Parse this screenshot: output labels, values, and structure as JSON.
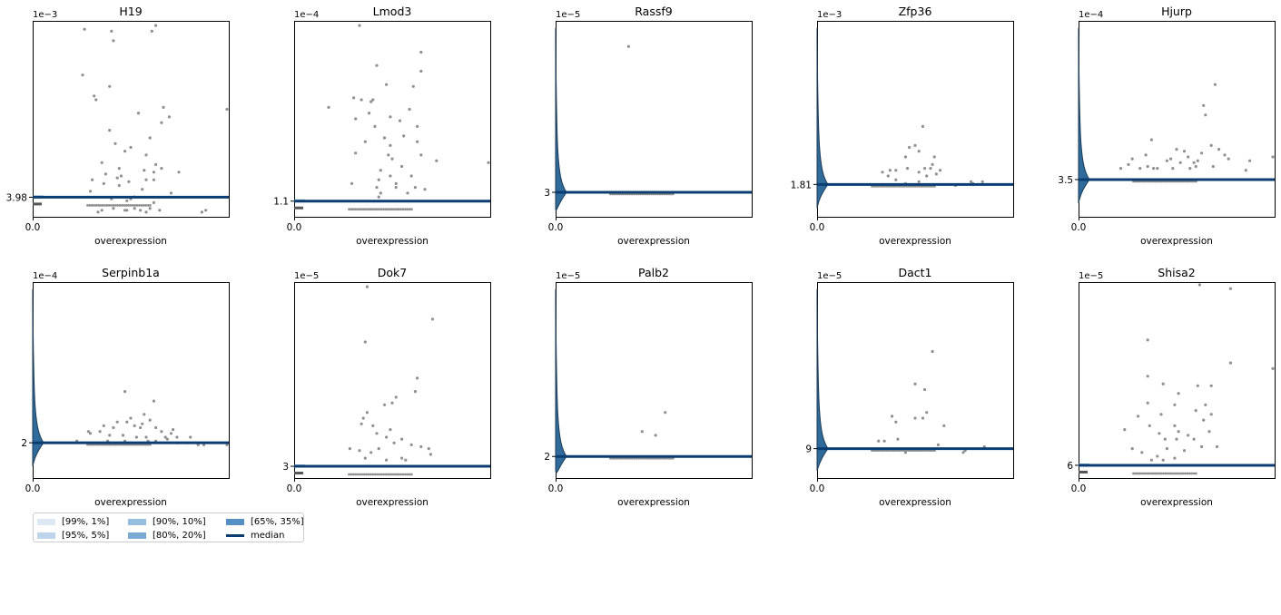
{
  "chart_data": [
    {
      "type": "violin+strip",
      "title": "H19",
      "exponent_label": "1e−3",
      "xtick": "0.0",
      "xlabel": "overexpression",
      "ytick_label": "3.98",
      "median": 3.98,
      "median_scale": "1e-3",
      "distribution": "narrow",
      "points": [
        [
          0.48,
          0.07
        ],
        [
          0.29,
          0.12
        ],
        [
          0.33,
          0.01
        ],
        [
          0.47,
          0.02
        ],
        [
          0.56,
          0.13
        ],
        [
          0.62,
          0.06
        ],
        [
          0.4,
          0.08
        ],
        [
          0.52,
          0.09
        ],
        [
          0.71,
          0.11
        ],
        [
          0.3,
          0.18
        ],
        [
          0.37,
          0.21
        ],
        [
          0.44,
          0.15
        ],
        [
          0.58,
          0.31
        ],
        [
          0.35,
          0.27
        ],
        [
          0.6,
          0.4
        ],
        [
          0.63,
          0.26
        ],
        [
          0.5,
          0.08
        ],
        [
          0.54,
          0.53
        ],
        [
          0.42,
          0.37
        ],
        [
          0.39,
          0.44
        ],
        [
          0.66,
          0.48
        ],
        [
          0.31,
          0.62
        ],
        [
          0.67,
          0.56
        ],
        [
          0.32,
          0.6
        ],
        [
          0.39,
          0.67
        ],
        [
          0.26,
          0.97
        ],
        [
          0.4,
          0.96
        ],
        [
          0.41,
          0.91
        ],
        [
          0.61,
          0.96
        ],
        [
          0.63,
          0.99
        ],
        [
          0.7,
          0.51
        ],
        [
          0.25,
          0.73
        ],
        [
          0.5,
          0.35
        ],
        [
          0.47,
          0.33
        ],
        [
          0.66,
          0.24
        ],
        [
          0.62,
          0.22
        ],
        [
          0.44,
          0.24
        ],
        [
          0.36,
          0.16
        ],
        [
          0.43,
          0.19
        ],
        [
          0.45,
          0.2
        ],
        [
          0.57,
          0.23
        ],
        [
          0.58,
          0.18
        ],
        [
          0.49,
          0.17
        ],
        [
          0.62,
          0.18
        ],
        [
          0.75,
          0.22
        ],
        [
          0.48,
          0.02
        ],
        [
          0.52,
          0.03
        ],
        [
          0.55,
          0.02
        ],
        [
          0.58,
          0.01
        ],
        [
          0.6,
          0.03
        ],
        [
          0.65,
          0.02
        ],
        [
          0.41,
          0.03
        ],
        [
          0.35,
          0.02
        ],
        [
          0.87,
          0.01
        ],
        [
          0.89,
          0.02
        ],
        [
          1.0,
          0.55
        ]
      ]
    },
    {
      "type": "violin+strip",
      "title": "Lmod3",
      "exponent_label": "1e−4",
      "xtick": "0.0",
      "xlabel": "overexpression",
      "ytick_label": "1.1",
      "median": 1.1,
      "median_scale": "1e-4",
      "distribution": "narrow",
      "points": [
        [
          0.33,
          0.99
        ],
        [
          0.42,
          0.78
        ],
        [
          0.65,
          0.85
        ],
        [
          0.52,
          0.16
        ],
        [
          0.43,
          0.18
        ],
        [
          0.49,
          0.2
        ],
        [
          0.31,
          0.32
        ],
        [
          0.44,
          0.23
        ],
        [
          0.56,
          0.41
        ],
        [
          0.63,
          0.38
        ],
        [
          0.36,
          0.38
        ],
        [
          0.46,
          0.4
        ],
        [
          0.63,
          0.46
        ],
        [
          0.41,
          0.46
        ],
        [
          0.54,
          0.49
        ],
        [
          0.49,
          0.51
        ],
        [
          0.39,
          0.59
        ],
        [
          0.59,
          0.55
        ],
        [
          0.61,
          0.67
        ],
        [
          0.65,
          0.75
        ],
        [
          0.4,
          0.6
        ],
        [
          0.49,
          0.36
        ],
        [
          0.34,
          0.6
        ],
        [
          0.38,
          0.53
        ],
        [
          0.3,
          0.61
        ],
        [
          0.17,
          0.56
        ],
        [
          0.47,
          0.68
        ],
        [
          0.31,
          0.5
        ],
        [
          0.42,
          0.14
        ],
        [
          0.44,
          0.11
        ],
        [
          0.43,
          0.09
        ],
        [
          0.52,
          0.14
        ],
        [
          0.58,
          0.11
        ],
        [
          0.6,
          0.2
        ],
        [
          0.62,
          0.14
        ],
        [
          0.67,
          0.13
        ],
        [
          0.73,
          0.28
        ],
        [
          0.65,
          0.31
        ],
        [
          0.29,
          0.16
        ],
        [
          1.0,
          0.27
        ],
        [
          0.55,
          0.25
        ],
        [
          0.48,
          0.31
        ],
        [
          0.5,
          0.29
        ]
      ]
    },
    {
      "type": "violin+strip",
      "title": "Rassf9",
      "exponent_label": "1e−5",
      "xtick": "0.0",
      "xlabel": "overexpression",
      "ytick_label": "3",
      "median": 3,
      "median_scale": "1e-5",
      "distribution": "wide",
      "points": [
        [
          0.37,
          0.88
        ]
      ]
    },
    {
      "type": "violin+strip",
      "title": "Zfp36",
      "exponent_label": "1e−3",
      "xtick": "0.0",
      "xlabel": "overexpression",
      "ytick_label": "1.81",
      "median": 1.81,
      "median_scale": "1e-3",
      "distribution": "wide",
      "points": [
        [
          0.54,
          0.46
        ],
        [
          0.52,
          0.33
        ],
        [
          0.59,
          0.26
        ],
        [
          0.6,
          0.3
        ],
        [
          0.5,
          0.36
        ],
        [
          0.47,
          0.35
        ],
        [
          0.45,
          0.3
        ],
        [
          0.33,
          0.22
        ],
        [
          0.37,
          0.23
        ],
        [
          0.4,
          0.23
        ],
        [
          0.46,
          0.24
        ],
        [
          0.52,
          0.22
        ],
        [
          0.55,
          0.24
        ],
        [
          0.58,
          0.24
        ],
        [
          0.63,
          0.23
        ],
        [
          0.36,
          0.2
        ],
        [
          0.4,
          0.18
        ],
        [
          0.45,
          0.16
        ],
        [
          0.52,
          0.17
        ],
        [
          0.56,
          0.2
        ],
        [
          0.61,
          0.21
        ],
        [
          0.71,
          0.15
        ],
        [
          0.79,
          0.17
        ],
        [
          0.8,
          0.16
        ],
        [
          0.85,
          0.17
        ]
      ]
    },
    {
      "type": "violin+strip",
      "title": "Hjurp",
      "exponent_label": "1e−4",
      "xtick": "0.0",
      "xlabel": "overexpression",
      "ytick_label": "3.5",
      "median": 3.5,
      "median_scale": "1e-4",
      "distribution": "wide",
      "points": [
        [
          0.7,
          0.68
        ],
        [
          0.65,
          0.52
        ],
        [
          0.64,
          0.57
        ],
        [
          0.47,
          0.29
        ],
        [
          0.37,
          0.39
        ],
        [
          0.34,
          0.31
        ],
        [
          0.5,
          0.34
        ],
        [
          0.63,
          0.32
        ],
        [
          0.59,
          0.27
        ],
        [
          0.56,
          0.3
        ],
        [
          0.68,
          0.36
        ],
        [
          0.72,
          0.34
        ],
        [
          0.31,
          0.24
        ],
        [
          0.4,
          0.24
        ],
        [
          0.45,
          0.28
        ],
        [
          0.52,
          0.27
        ],
        [
          0.57,
          0.24
        ],
        [
          0.6,
          0.25
        ],
        [
          0.69,
          0.25
        ],
        [
          0.75,
          0.31
        ],
        [
          0.77,
          0.29
        ],
        [
          0.88,
          0.28
        ],
        [
          0.86,
          0.23
        ],
        [
          0.25,
          0.26
        ],
        [
          0.21,
          0.24
        ],
        [
          0.27,
          0.29
        ],
        [
          0.38,
          0.24
        ],
        [
          0.35,
          0.25
        ],
        [
          0.48,
          0.24
        ],
        [
          0.61,
          0.28
        ],
        [
          0.54,
          0.33
        ],
        [
          1.0,
          0.3
        ]
      ]
    },
    {
      "type": "violin+strip",
      "title": "Serpinb1a",
      "exponent_label": "1e−4",
      "xtick": "0.0",
      "xlabel": "overexpression",
      "ytick_label": "2",
      "median": 2,
      "median_scale": "1e-4",
      "distribution": "wide",
      "points": [
        [
          0.47,
          0.44
        ],
        [
          0.62,
          0.39
        ],
        [
          0.57,
          0.32
        ],
        [
          0.56,
          0.27
        ],
        [
          0.48,
          0.28
        ],
        [
          0.43,
          0.28
        ],
        [
          0.41,
          0.25
        ],
        [
          0.34,
          0.23
        ],
        [
          0.29,
          0.22
        ],
        [
          0.28,
          0.23
        ],
        [
          0.36,
          0.26
        ],
        [
          0.5,
          0.3
        ],
        [
          0.52,
          0.26
        ],
        [
          0.55,
          0.25
        ],
        [
          0.6,
          0.29
        ],
        [
          0.63,
          0.25
        ],
        [
          0.66,
          0.23
        ],
        [
          0.72,
          0.24
        ],
        [
          0.71,
          0.22
        ],
        [
          0.74,
          0.2
        ],
        [
          0.53,
          0.2
        ],
        [
          0.39,
          0.21
        ],
        [
          0.46,
          0.21
        ],
        [
          0.58,
          0.2
        ],
        [
          0.68,
          0.2
        ],
        [
          0.81,
          0.2
        ],
        [
          0.22,
          0.18
        ],
        [
          0.38,
          0.18
        ],
        [
          0.47,
          0.18
        ],
        [
          0.59,
          0.18
        ],
        [
          0.63,
          0.18
        ],
        [
          0.69,
          0.19
        ],
        [
          0.74,
          0.17
        ],
        [
          0.79,
          0.17
        ],
        [
          0.85,
          0.16
        ],
        [
          0.88,
          0.16
        ],
        [
          1.0,
          0.16
        ]
      ]
    },
    {
      "type": "violin+strip",
      "title": "Dok7",
      "exponent_label": "1e−5",
      "xtick": "0.0",
      "xlabel": "overexpression",
      "ytick_label": "3",
      "median": 3,
      "median_scale": "1e-5",
      "distribution": "narrow",
      "points": [
        [
          0.37,
          0.99
        ],
        [
          0.71,
          0.82
        ],
        [
          0.36,
          0.7
        ],
        [
          0.52,
          0.41
        ],
        [
          0.62,
          0.44
        ],
        [
          0.63,
          0.51
        ],
        [
          0.5,
          0.38
        ],
        [
          0.46,
          0.37
        ],
        [
          0.37,
          0.33
        ],
        [
          0.35,
          0.3
        ],
        [
          0.34,
          0.27
        ],
        [
          0.42,
          0.22
        ],
        [
          0.4,
          0.26
        ],
        [
          0.49,
          0.24
        ],
        [
          0.47,
          0.2
        ],
        [
          0.43,
          0.14
        ],
        [
          0.51,
          0.17
        ],
        [
          0.55,
          0.19
        ],
        [
          0.6,
          0.16
        ],
        [
          0.65,
          0.15
        ],
        [
          0.69,
          0.14
        ],
        [
          0.7,
          0.11
        ],
        [
          0.33,
          0.13
        ],
        [
          0.39,
          0.12
        ],
        [
          0.28,
          0.14
        ],
        [
          0.55,
          0.09
        ],
        [
          0.57,
          0.08
        ],
        [
          0.47,
          0.08
        ],
        [
          0.36,
          0.09
        ]
      ]
    },
    {
      "type": "violin+strip",
      "title": "Palb2",
      "exponent_label": "1e−5",
      "xtick": "0.0",
      "xlabel": "overexpression",
      "ytick_label": "2",
      "median": 2,
      "median_scale": "1e-5",
      "distribution": "wide",
      "points": [
        [
          0.56,
          0.33
        ],
        [
          0.44,
          0.23
        ],
        [
          0.51,
          0.21
        ]
      ]
    },
    {
      "type": "violin+strip",
      "title": "Dact1",
      "exponent_label": "1e−5",
      "xtick": "0.0",
      "xlabel": "overexpression",
      "ytick_label": "9",
      "median": 9,
      "median_scale": "1e-5",
      "distribution": "wide",
      "points": [
        [
          0.59,
          0.65
        ],
        [
          0.55,
          0.45
        ],
        [
          0.5,
          0.48
        ],
        [
          0.56,
          0.33
        ],
        [
          0.65,
          0.26
        ],
        [
          0.38,
          0.31
        ],
        [
          0.4,
          0.28
        ],
        [
          0.5,
          0.3
        ],
        [
          0.54,
          0.3
        ],
        [
          0.41,
          0.19
        ],
        [
          0.31,
          0.18
        ],
        [
          0.34,
          0.18
        ],
        [
          0.86,
          0.15
        ],
        [
          0.76,
          0.13
        ],
        [
          0.75,
          0.12
        ],
        [
          0.45,
          0.12
        ],
        [
          0.62,
          0.16
        ]
      ]
    },
    {
      "type": "violin+strip",
      "title": "Shisa2",
      "exponent_label": "1e−5",
      "xtick": "0.0",
      "xlabel": "overexpression",
      "ytick_label": "6",
      "median": 6,
      "median_scale": "1e-5",
      "distribution": "narrow",
      "points": [
        [
          0.62,
          1.0
        ],
        [
          0.78,
          0.98
        ],
        [
          0.35,
          0.71
        ],
        [
          0.78,
          0.59
        ],
        [
          1.0,
          0.56
        ],
        [
          0.35,
          0.52
        ],
        [
          0.43,
          0.48
        ],
        [
          0.61,
          0.47
        ],
        [
          0.68,
          0.47
        ],
        [
          0.51,
          0.43
        ],
        [
          0.35,
          0.38
        ],
        [
          0.49,
          0.37
        ],
        [
          0.3,
          0.31
        ],
        [
          0.42,
          0.32
        ],
        [
          0.6,
          0.34
        ],
        [
          0.65,
          0.37
        ],
        [
          0.68,
          0.32
        ],
        [
          0.36,
          0.26
        ],
        [
          0.49,
          0.26
        ],
        [
          0.51,
          0.23
        ],
        [
          0.59,
          0.19
        ],
        [
          0.67,
          0.23
        ],
        [
          0.64,
          0.29
        ],
        [
          0.23,
          0.24
        ],
        [
          0.41,
          0.22
        ],
        [
          0.44,
          0.19
        ],
        [
          0.5,
          0.19
        ],
        [
          0.56,
          0.21
        ],
        [
          0.63,
          0.15
        ],
        [
          0.71,
          0.15
        ],
        [
          0.45,
          0.14
        ],
        [
          0.54,
          0.13
        ],
        [
          0.27,
          0.14
        ],
        [
          0.32,
          0.12
        ],
        [
          0.4,
          0.1
        ],
        [
          0.49,
          0.09
        ],
        [
          0.37,
          0.08
        ],
        [
          0.43,
          0.08
        ]
      ]
    }
  ],
  "legend": {
    "items": [
      {
        "label": "[99%, 1%]",
        "color": "#dde8f3",
        "kind": "patch"
      },
      {
        "label": "[95%, 5%]",
        "color": "#bdd4ea",
        "kind": "patch"
      },
      {
        "label": "[90%, 10%]",
        "color": "#98bedf",
        "kind": "patch"
      },
      {
        "label": "[80%, 20%]",
        "color": "#78aad4",
        "kind": "patch"
      },
      {
        "label": "[65%, 35%]",
        "color": "#5490c3",
        "kind": "patch"
      },
      {
        "label": "median",
        "color": "#0c3d72",
        "kind": "line"
      }
    ]
  },
  "colors": {
    "violin": "#2e6b9a",
    "median": "#0c3d72",
    "points": "#909090",
    "axis": "#000000"
  }
}
